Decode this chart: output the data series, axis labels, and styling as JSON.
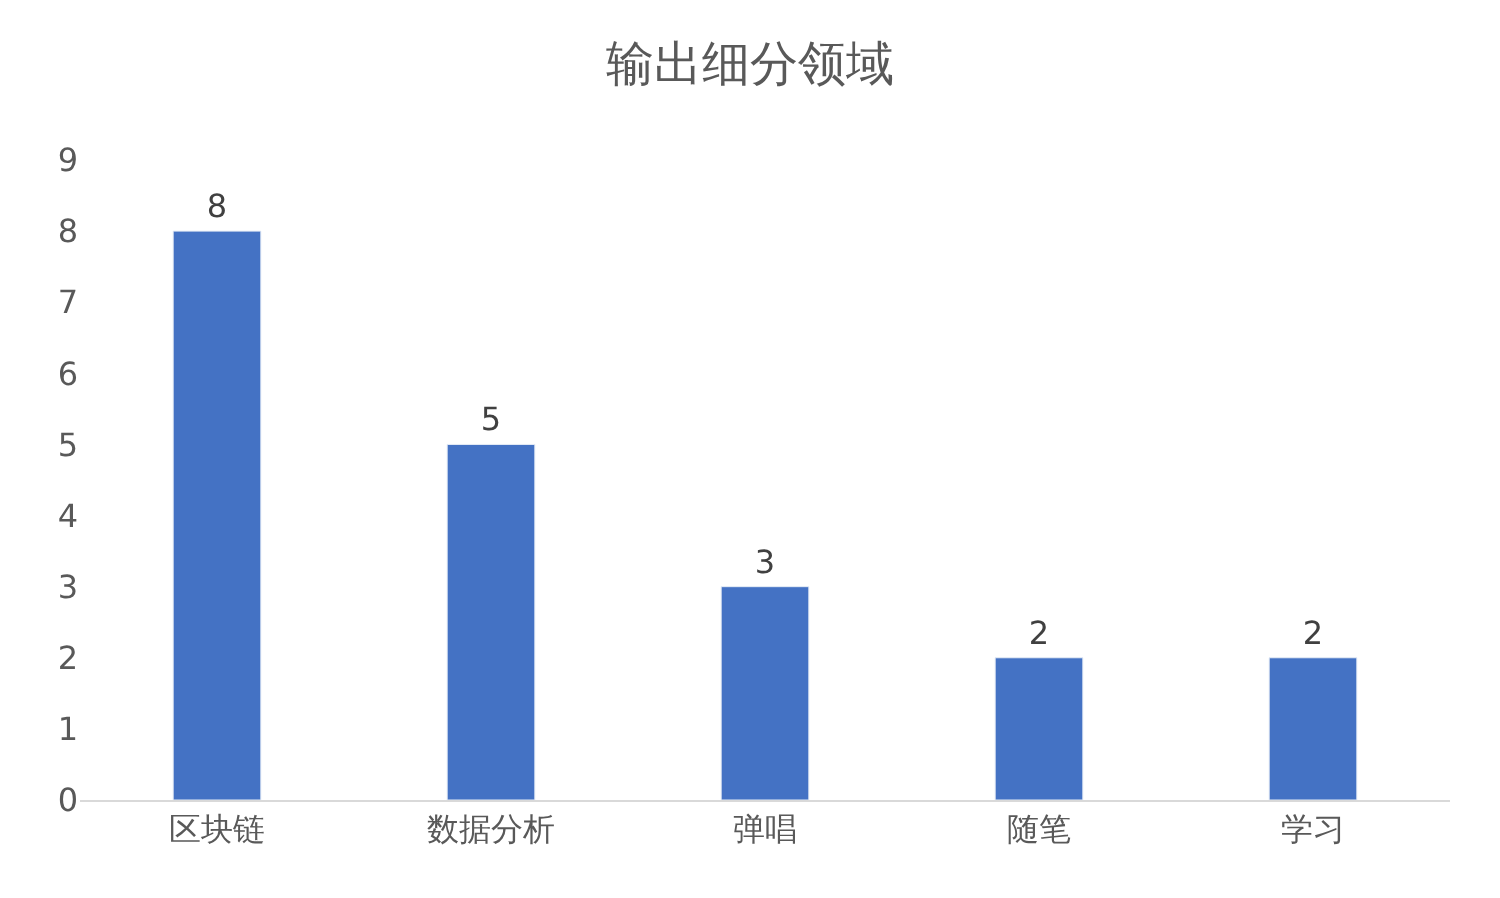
{
  "chart_data": {
    "type": "bar",
    "title": "输出细分领域",
    "categories": [
      "区块链",
      "数据分析",
      "弹唱",
      "随笔",
      "学习"
    ],
    "values": [
      8,
      5,
      3,
      2,
      2
    ],
    "color": "#4472c4",
    "ylim": [
      0,
      9
    ],
    "yticks": [
      0,
      1,
      2,
      3,
      4,
      5,
      6,
      7,
      8,
      9
    ],
    "data_labels": true
  }
}
